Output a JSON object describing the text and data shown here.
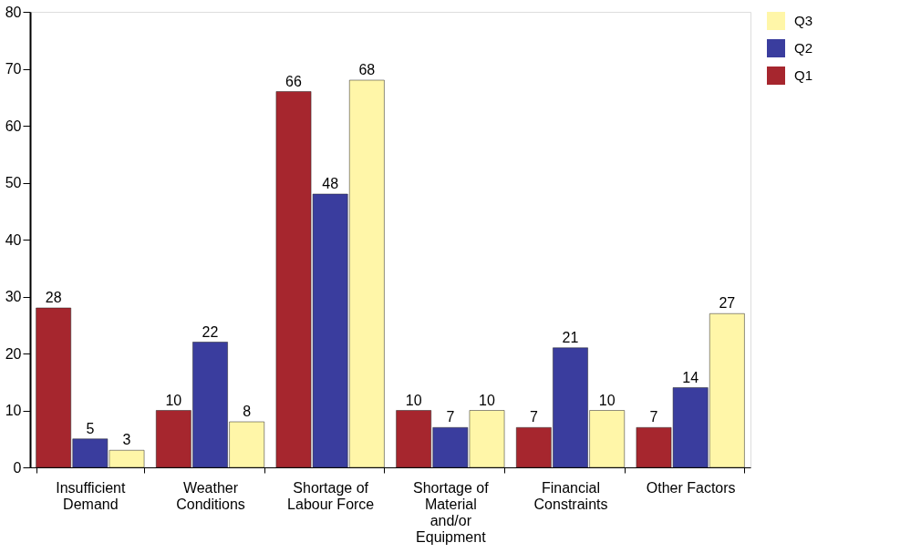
{
  "chart_data": {
    "type": "bar",
    "categories": [
      "Insufficient Demand",
      "Weather Conditions",
      "Shortage of Labour Force",
      "Shortage of Material and/or Equipment",
      "Financial Constraints",
      "Other Factors"
    ],
    "series": [
      {
        "name": "Q1",
        "color": "#a6262e",
        "values": [
          28,
          10,
          66,
          10,
          7,
          7
        ]
      },
      {
        "name": "Q2",
        "color": "#3a3d9e",
        "values": [
          5,
          22,
          48,
          7,
          21,
          14
        ]
      },
      {
        "name": "Q3",
        "color": "#fff6a8",
        "values": [
          3,
          8,
          68,
          10,
          10,
          27
        ]
      }
    ],
    "ylim": [
      0,
      80
    ],
    "yticks": [
      0,
      10,
      20,
      30,
      40,
      50,
      60,
      70,
      80
    ],
    "grid": false,
    "legend": "right",
    "data_labels": true
  }
}
